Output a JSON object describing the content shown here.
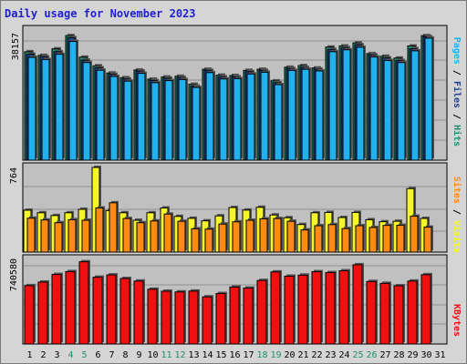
{
  "title": "Daily usage for November 2023",
  "colors": {
    "hits": "#1f8f6f",
    "files": "#1f3f8f",
    "pages": "#22b0ee",
    "visits": "#f5f52a",
    "sites": "#ff8a14",
    "kbytes": "#f01010",
    "weekend": "#1f8f6f",
    "weekday": "#000000",
    "plot_bg": "#c0c0c0",
    "grid": "#8f8f8f"
  },
  "chart_data": [
    {
      "type": "bar",
      "panel": "top",
      "ytick": "38157",
      "right_label": [
        "Pages",
        "Files",
        "Hits"
      ],
      "ylim": [
        0,
        38157
      ],
      "categories": [
        "1",
        "2",
        "3",
        "4",
        "5",
        "6",
        "7",
        "8",
        "9",
        "10",
        "11",
        "12",
        "13",
        "14",
        "15",
        "16",
        "17",
        "18",
        "19",
        "20",
        "21",
        "22",
        "23",
        "24",
        "25",
        "26",
        "27",
        "28",
        "29",
        "30",
        "31"
      ],
      "weekend_days": [
        "4",
        "5",
        "11",
        "12",
        "18",
        "19",
        "25",
        "26"
      ],
      "series": [
        {
          "name": "Hits",
          "values": [
            32470,
            31390,
            33340,
            37300,
            30850,
            28260,
            26100,
            24700,
            27010,
            24270,
            24920,
            25140,
            22730,
            27230,
            25460,
            25360,
            26890,
            27230,
            23750,
            27840,
            28330,
            27610,
            33880,
            34210,
            35120,
            31910,
            31130,
            30580,
            34210,
            37300,
            0
          ]
        },
        {
          "name": "Files",
          "values": [
            31720,
            30960,
            32490,
            36680,
            29950,
            27650,
            25720,
            24310,
            26680,
            23880,
            24530,
            24750,
            22190,
            26890,
            24970,
            24970,
            26500,
            26890,
            23210,
            27450,
            27780,
            27230,
            33160,
            33710,
            34560,
            31520,
            30630,
            29860,
            33380,
            36990,
            0
          ]
        },
        {
          "name": "Pages",
          "values": [
            30790,
            30140,
            31720,
            35560,
            29240,
            26940,
            25080,
            23670,
            26010,
            23210,
            23830,
            24160,
            21790,
            26230,
            24330,
            24430,
            25800,
            26340,
            22630,
            26890,
            27230,
            26720,
            32490,
            33050,
            33820,
            30900,
            29860,
            29240,
            32750,
            36550,
            0
          ]
        }
      ]
    },
    {
      "type": "bar",
      "panel": "middle",
      "ytick": "764",
      "right_label": [
        "Sites",
        "Visits"
      ],
      "ylim": [
        0,
        764
      ],
      "categories": [
        "1",
        "2",
        "3",
        "4",
        "5",
        "6",
        "7",
        "8",
        "9",
        "10",
        "11",
        "12",
        "13",
        "14",
        "15",
        "16",
        "17",
        "18",
        "19",
        "20",
        "21",
        "22",
        "23",
        "24",
        "25",
        "26",
        "27",
        "28",
        "29",
        "30",
        "31"
      ],
      "series": [
        {
          "name": "Visits",
          "values": [
            378,
            355,
            330,
            355,
            386,
            764,
            375,
            355,
            287,
            355,
            398,
            322,
            305,
            282,
            327,
            402,
            379,
            404,
            335,
            310,
            249,
            355,
            358,
            312,
            358,
            292,
            274,
            278,
            573,
            304,
            0
          ]
        },
        {
          "name": "Sites",
          "values": [
            306,
            290,
            265,
            292,
            287,
            398,
            445,
            303,
            265,
            281,
            343,
            278,
            210,
            207,
            253,
            273,
            287,
            300,
            303,
            278,
            200,
            238,
            248,
            212,
            238,
            222,
            241,
            242,
            324,
            225,
            0
          ]
        }
      ]
    },
    {
      "type": "bar",
      "panel": "bottom",
      "ytick": "740580",
      "right_label": [
        "KBytes"
      ],
      "ylim": [
        0,
        740580
      ],
      "categories": [
        "1",
        "2",
        "3",
        "4",
        "5",
        "6",
        "7",
        "8",
        "9",
        "10",
        "11",
        "12",
        "13",
        "14",
        "15",
        "16",
        "17",
        "18",
        "19",
        "20",
        "21",
        "22",
        "23",
        "24",
        "25",
        "26",
        "27",
        "28",
        "29",
        "30",
        "31"
      ],
      "series": [
        {
          "name": "KBytes",
          "values": [
            505000,
            536000,
            602000,
            627000,
            712000,
            578000,
            598000,
            567000,
            545000,
            474000,
            457000,
            451000,
            458000,
            408000,
            437000,
            493000,
            484000,
            550000,
            624000,
            587000,
            596000,
            626000,
            618000,
            634000,
            686000,
            541000,
            525000,
            504000,
            545000,
            600000,
            0
          ]
        }
      ]
    }
  ]
}
